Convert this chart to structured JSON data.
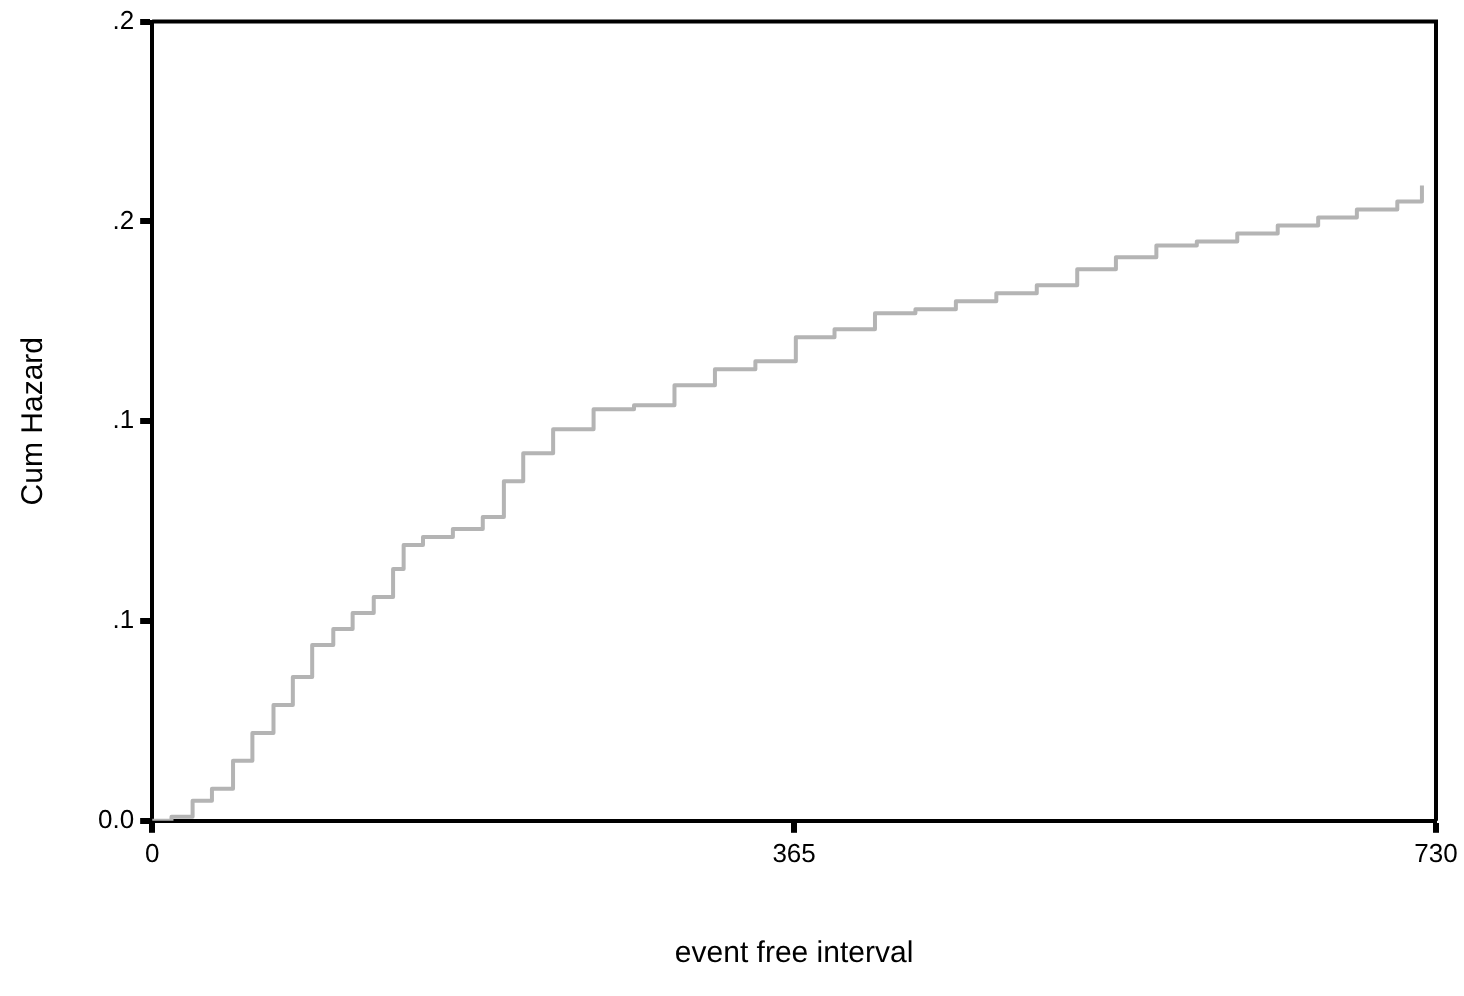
{
  "chart_data": {
    "type": "step",
    "xlabel": "event free interval",
    "ylabel": "Cum Hazard",
    "x": [
      0,
      11,
      23,
      34,
      46,
      57,
      69,
      80,
      91,
      103,
      114,
      126,
      137,
      143,
      154,
      171,
      188,
      200,
      211,
      228,
      251,
      274,
      297,
      320,
      343,
      366,
      388,
      411,
      434,
      457,
      480,
      503,
      526,
      548,
      571,
      594,
      617,
      640,
      663,
      685,
      708,
      722
    ],
    "series": [
      {
        "color": "#b4b4b4",
        "values": [
          0,
          0.001,
          0.005,
          0.008,
          0.015,
          0.022,
          0.029,
          0.036,
          0.044,
          0.048,
          0.052,
          0.056,
          0.063,
          0.069,
          0.071,
          0.073,
          0.076,
          0.085,
          0.092,
          0.098,
          0.103,
          0.104,
          0.109,
          0.113,
          0.115,
          0.121,
          0.123,
          0.127,
          0.128,
          0.13,
          0.132,
          0.134,
          0.138,
          0.141,
          0.144,
          0.145,
          0.147,
          0.149,
          0.151,
          0.153,
          0.155,
          0.159
        ]
      }
    ],
    "xlim": [
      0,
      730
    ],
    "xticks": [
      0,
      365,
      730
    ],
    "ylim": [
      0,
      0.2
    ],
    "yticks": [
      {
        "value": 0,
        "label": "0.0"
      },
      {
        "value": 0.05,
        "label": ".1"
      },
      {
        "value": 0.1,
        "label": ".1"
      },
      {
        "value": 0.15,
        "label": ".2"
      },
      {
        "value": 0.2,
        "label": ".2"
      }
    ],
    "grid": false,
    "legend": false,
    "marker": "none",
    "line_style": "solid"
  }
}
